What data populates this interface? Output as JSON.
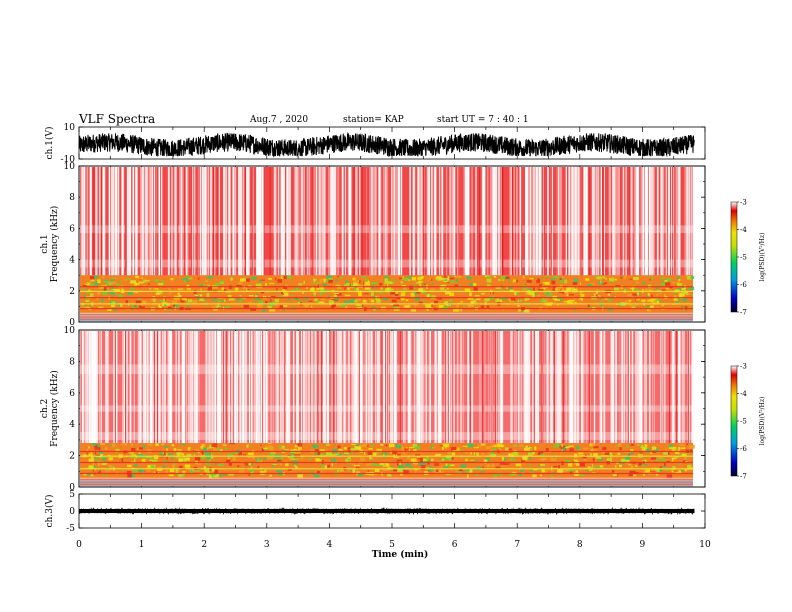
{
  "header": {
    "title": "VLF Spectra",
    "date": "Aug.7 , 2020",
    "station": "station= KAP",
    "start": "start UT = 7 : 40 : 1"
  },
  "chart_data": [
    {
      "type": "line",
      "name": "ch1-waveform",
      "ylabel": "ch.1(V)",
      "ylim": [
        -10,
        10
      ],
      "yticks": [
        "10",
        "-10"
      ],
      "xlim": [
        0,
        10
      ],
      "x_unit": "min",
      "x_end": 9.83,
      "trace_range": [
        -8,
        6
      ],
      "trace_mean": -1.5,
      "color": "#000000"
    },
    {
      "type": "heatmap",
      "name": "ch1-spectrogram",
      "ylabel": "ch.1\nFrequency (kHz)",
      "ylim": [
        0,
        10
      ],
      "yticks": [
        "0",
        "2",
        "4",
        "6",
        "8",
        "10"
      ],
      "xlim": [
        0,
        10
      ],
      "x_end": 9.83,
      "band_top_khz": 3.0,
      "colorbar": {
        "label": "log(PSD)(V²/Hz)",
        "range": [
          -7,
          -3
        ],
        "ticks": [
          "-3",
          "-4",
          "-5",
          "-6",
          "-7"
        ]
      }
    },
    {
      "type": "heatmap",
      "name": "ch2-spectrogram",
      "ylabel": "ch.2\nFrequency (kHz)",
      "ylim": [
        0,
        10
      ],
      "yticks": [
        "0",
        "2",
        "4",
        "6",
        "8",
        "10"
      ],
      "xlim": [
        0,
        10
      ],
      "x_end": 9.83,
      "band_top_khz": 2.8,
      "colorbar": {
        "label": "log(PSD)(V²/Hz)",
        "range": [
          -7,
          -3
        ],
        "ticks": [
          "-3",
          "-4",
          "-5",
          "-6",
          "-7"
        ]
      }
    },
    {
      "type": "line",
      "name": "ch3-waveform",
      "ylabel": "ch.3(V)",
      "ylim": [
        -5,
        5
      ],
      "yticks": [
        "5",
        "0",
        "-5"
      ],
      "xlim": [
        0,
        10
      ],
      "x_end": 9.83,
      "trace_range": [
        -0.7,
        0.7
      ],
      "trace_mean": 0,
      "color": "#000000"
    }
  ],
  "xaxis": {
    "label": "Time (min)",
    "ticks": [
      "0",
      "1",
      "2",
      "3",
      "4",
      "5",
      "6",
      "7",
      "8",
      "9",
      "10"
    ]
  }
}
